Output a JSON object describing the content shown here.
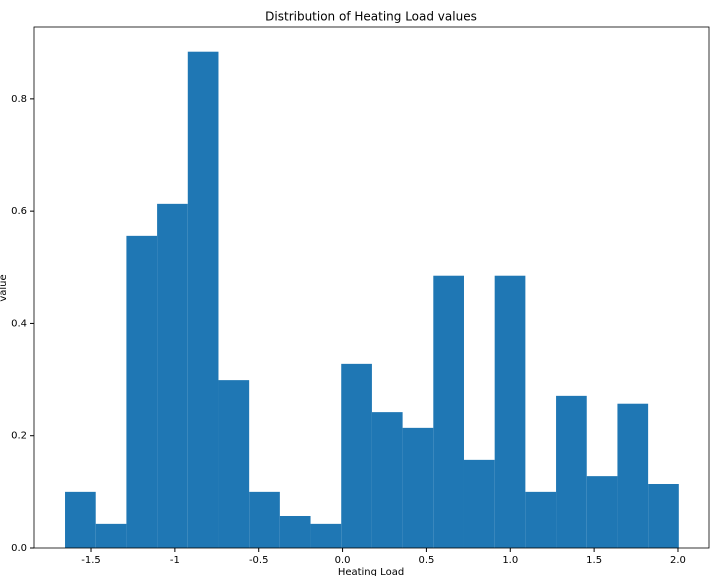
{
  "chart_data": {
    "type": "histogram",
    "title": "Distribution of Heating Load values",
    "x_label": "Heating Load",
    "y_label": "value",
    "color": "#1f77b4",
    "bins": [
      -1.655,
      -1.472,
      -1.289,
      -1.106,
      -0.923,
      -0.74,
      -0.557,
      -0.374,
      -0.191,
      -0.008,
      0.175,
      0.358,
      0.541,
      0.724,
      0.907,
      1.09,
      1.273,
      1.456,
      1.639,
      1.822,
      2.005
    ],
    "values": [
      0.1,
      0.043,
      0.556,
      0.613,
      0.884,
      0.299,
      0.1,
      0.057,
      0.043,
      0.328,
      0.242,
      0.214,
      0.485,
      0.157,
      0.485,
      0.1,
      0.271,
      0.128,
      0.257,
      0.114
    ],
    "xlim": [
      -1.84,
      2.185
    ],
    "xticks": [
      -1.5,
      -1,
      -0.5,
      {
        "value": 0,
        "label": "0.0"
      },
      0.5,
      {
        "value": 1,
        "label": "1.0"
      },
      1.5,
      {
        "value": 2,
        "label": "2.0"
      }
    ],
    "ylim": [
      0,
      0.928
    ],
    "yticks": [
      {
        "value": 0,
        "label": "0.0"
      },
      0.2,
      0.4,
      0.6,
      0.8
    ]
  }
}
